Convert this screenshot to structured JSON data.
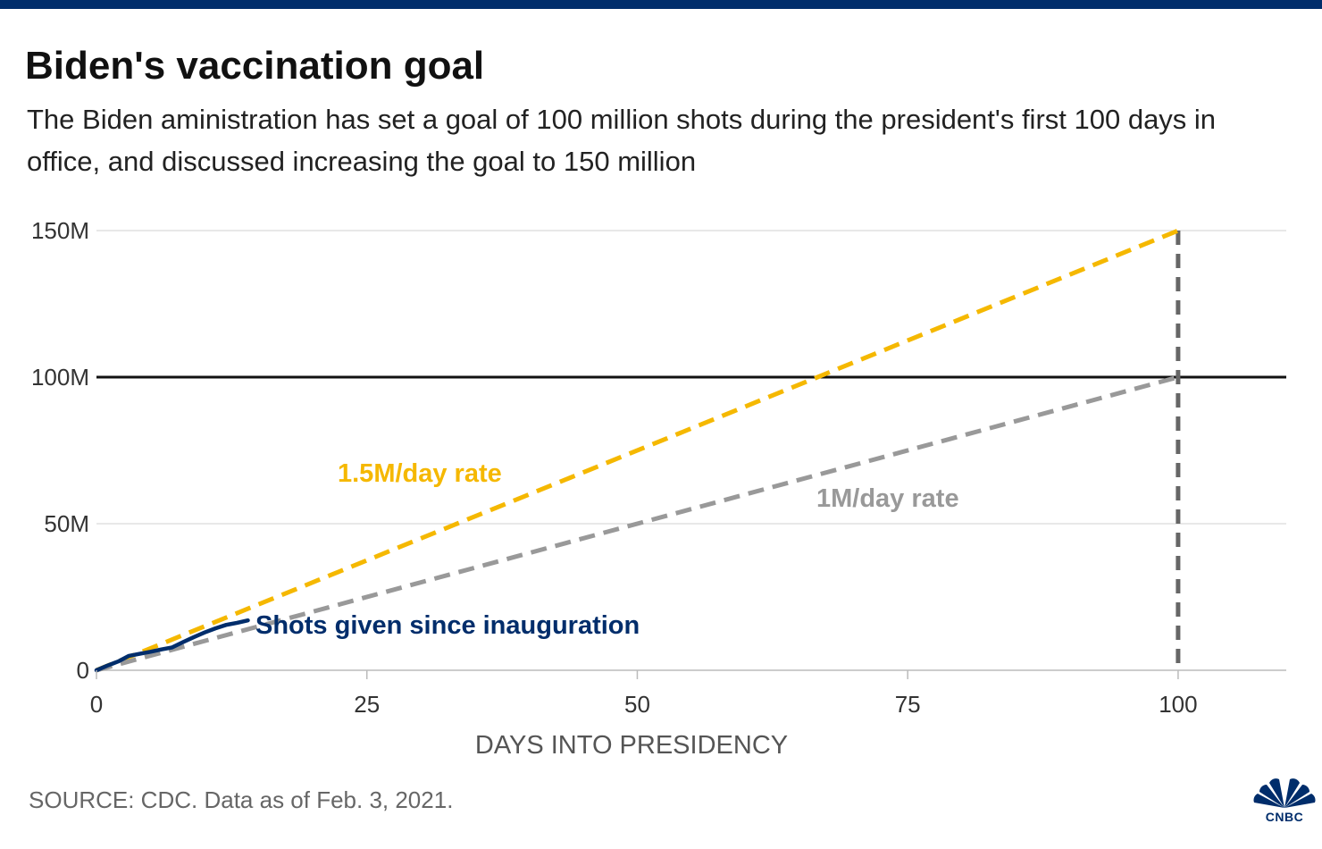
{
  "title": "Biden's vaccination goal",
  "subtitle": "The Biden aministration has set a goal of 100 million shots during the president's first 100 days in office, and discussed increasing the goal to 150 million",
  "source": "SOURCE: CDC. Data as of Feb. 3, 2021.",
  "logo_text": "CNBC",
  "colors": {
    "brand_bar": "#002d6b",
    "shots": "#002d6b",
    "rate_1_5m": "#f5b800",
    "rate_1m": "#999999",
    "goal_line": "#111111",
    "day100_line": "#666666"
  },
  "chart_data": {
    "type": "line",
    "title": "",
    "xlabel": "DAYS INTO PRESIDENCY",
    "ylabel": "",
    "xlim": [
      0,
      110
    ],
    "ylim": [
      0,
      150
    ],
    "x_ticks": [
      0,
      25,
      50,
      75,
      100
    ],
    "x_tick_labels": [
      "0",
      "25",
      "50",
      "75",
      "100"
    ],
    "y_ticks": [
      0,
      50,
      100,
      150
    ],
    "y_tick_labels": [
      "0",
      "50M",
      "100M",
      "150M"
    ],
    "grid": true,
    "reference_lines": [
      {
        "axis": "y",
        "value": 100,
        "style": "solid"
      },
      {
        "axis": "x",
        "value": 100,
        "style": "dashed"
      }
    ],
    "series": [
      {
        "name": "1.5M/day rate",
        "style": "dashed",
        "x": [
          0,
          100
        ],
        "y": [
          0,
          150
        ]
      },
      {
        "name": "1M/day rate",
        "style": "dashed",
        "x": [
          0,
          100
        ],
        "y": [
          0,
          100
        ]
      },
      {
        "name": "Shots given since inauguration",
        "style": "solid",
        "x": [
          0,
          1,
          2,
          3,
          4,
          5,
          6,
          7,
          8,
          9,
          10,
          11,
          12,
          13,
          14
        ],
        "y": [
          0,
          1.6,
          3.0,
          4.9,
          5.6,
          6.3,
          7.1,
          7.8,
          9.6,
          11.3,
          12.9,
          14.3,
          15.5,
          16.2,
          17.0
        ]
      }
    ]
  }
}
